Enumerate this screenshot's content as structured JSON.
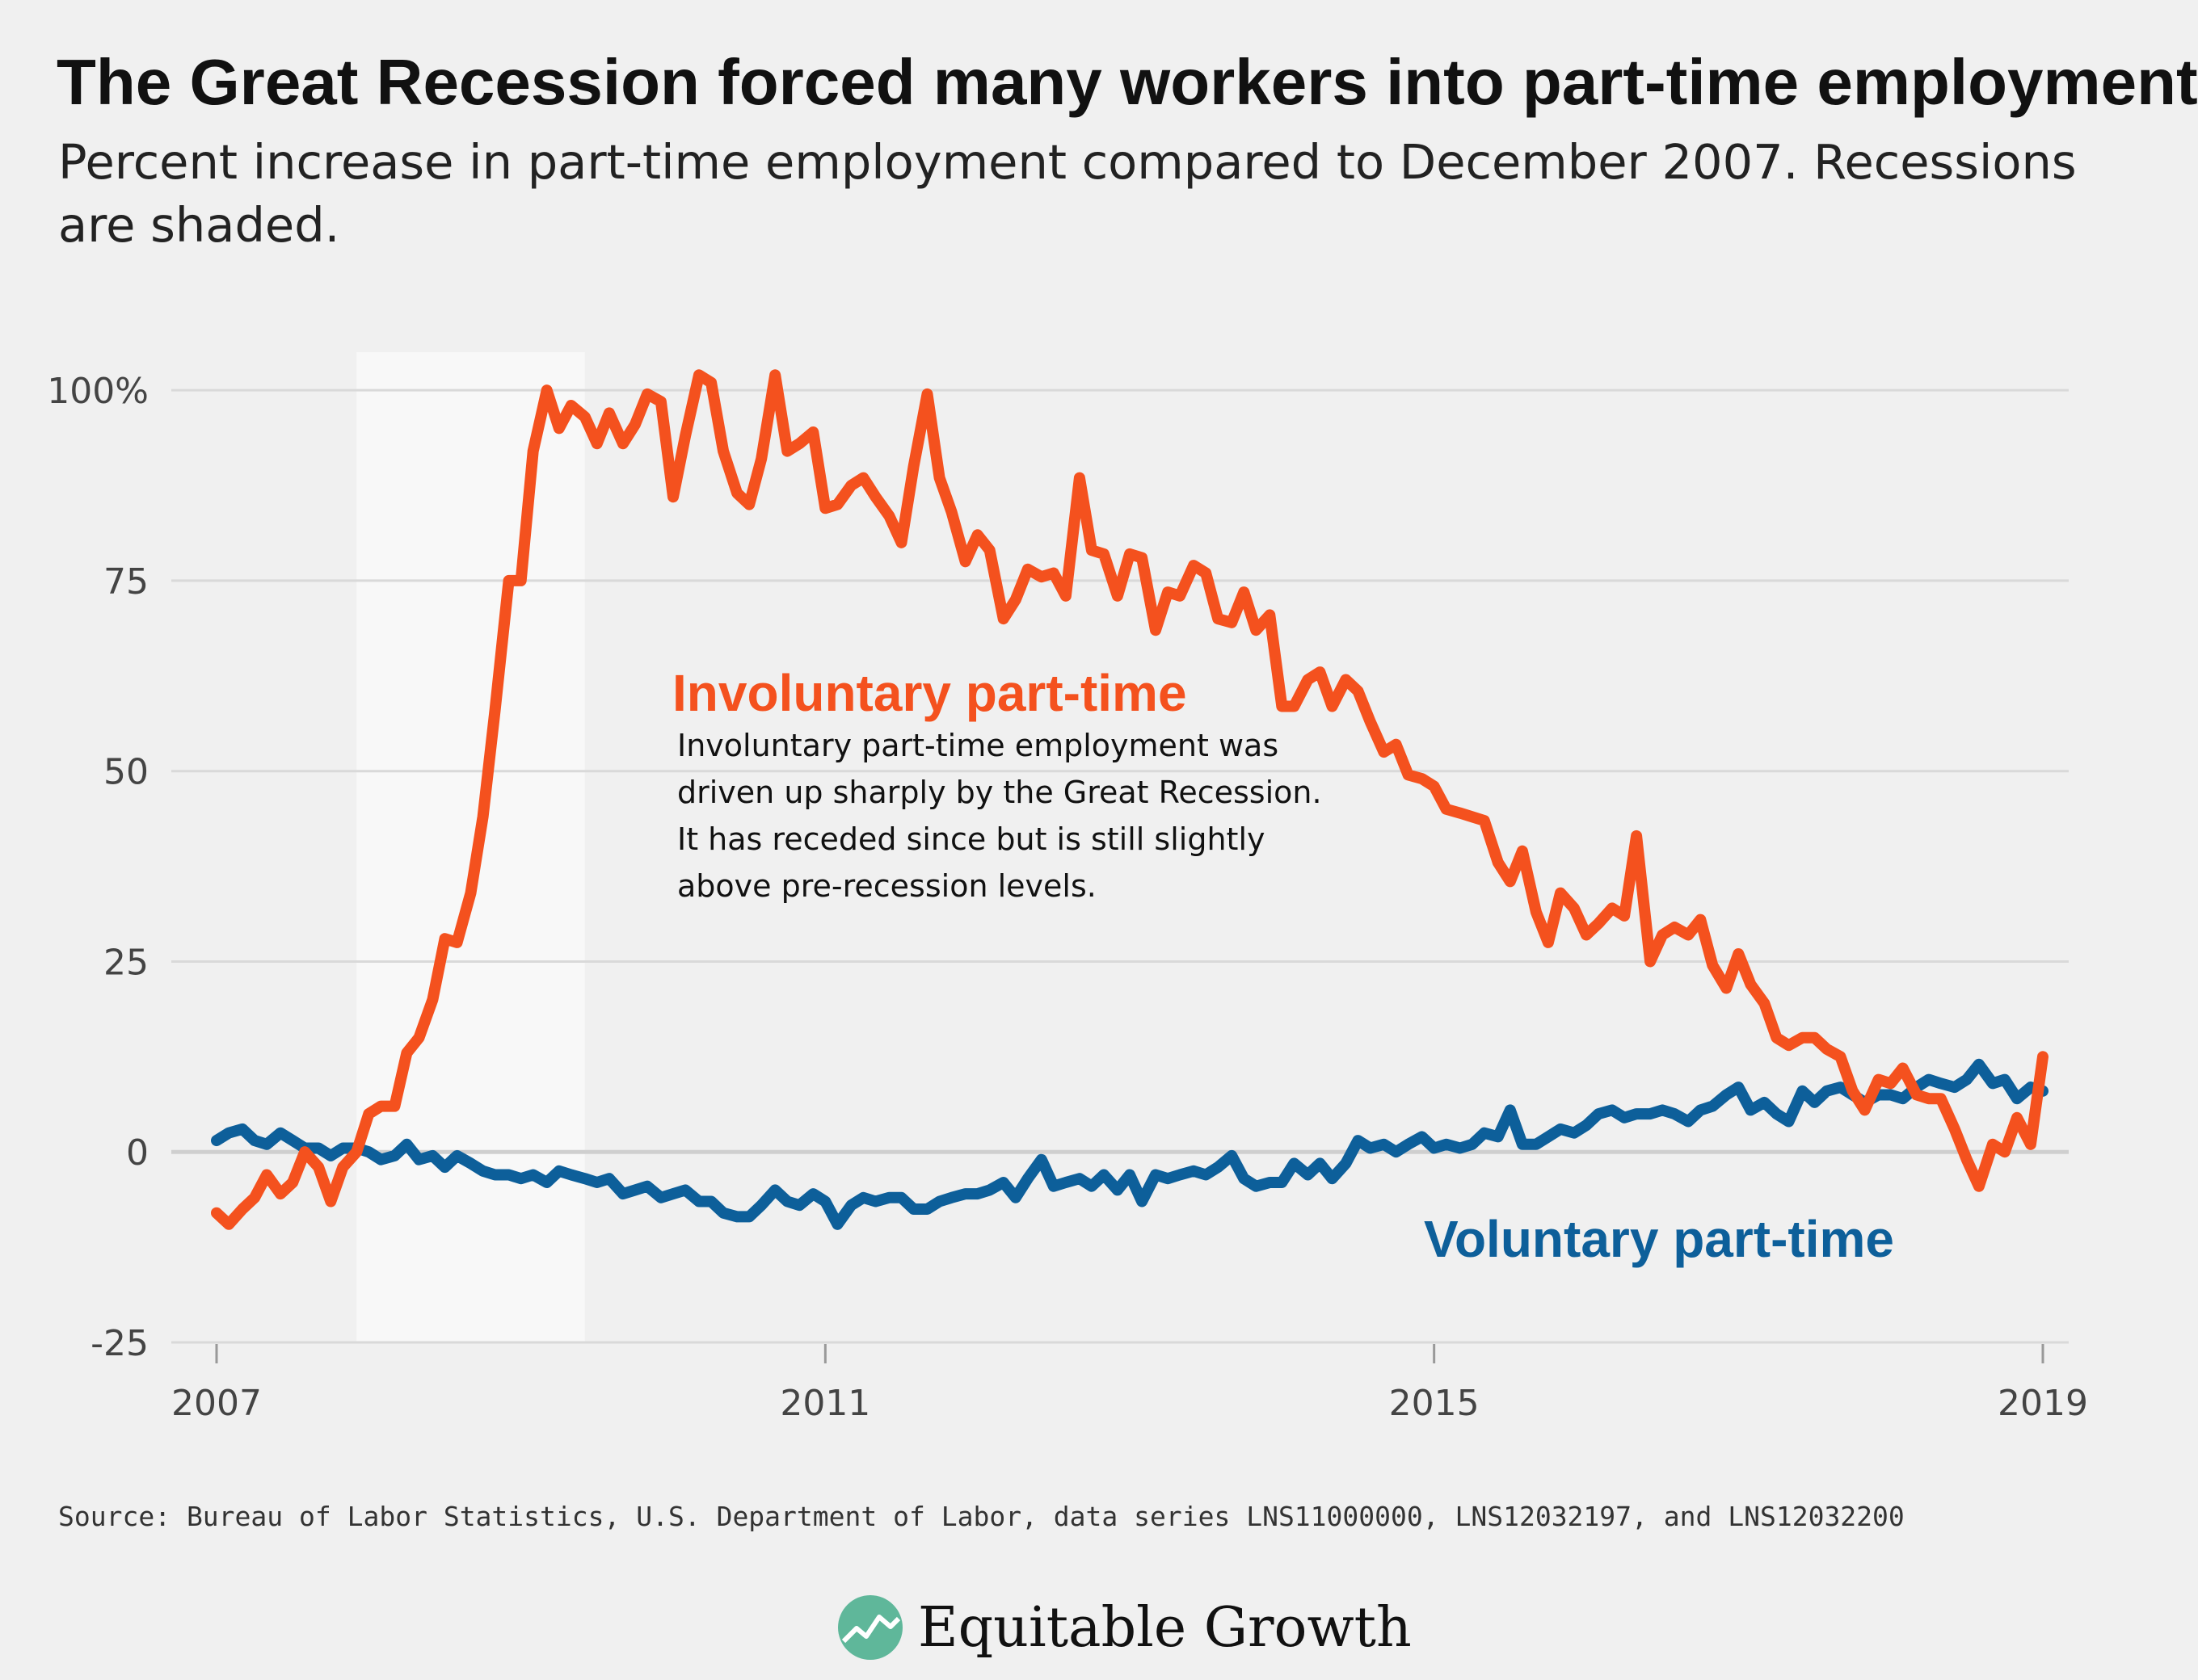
{
  "title": "The Great Recession forced many workers into part-time employment",
  "subtitle": "Percent increase in part-time employment compared to December 2007. Recessions are shaded.",
  "source": "Source: Bureau of Labor Statistics, U.S. Department of Labor, data series LNS11000000, LNS12032197, and LNS12032200",
  "logo_text": "Equitable Growth",
  "colors": {
    "involuntary": "#f4511e",
    "voluntary": "#0d5f9a",
    "recession": "#f8f8f8",
    "grid": "#d9d9d9",
    "logo_green": "#5fb79a"
  },
  "annotation": {
    "title": "Involuntary part-time",
    "lines": [
      "Involuntary part-time employment was",
      "driven up sharply by the Great Recession.",
      "It has receded since but is still slightly",
      "above pre-recession levels."
    ]
  },
  "voluntary_label": "Voluntary part-time",
  "chart_data": {
    "type": "line",
    "title": "The Great Recession forced many workers into part-time employment",
    "subtitle": "Percent increase in part-time employment compared to December 2007. Recessions are shaded.",
    "xlabel": "",
    "ylabel": "",
    "xlim": [
      2007,
      2019
    ],
    "ylim": [
      -25,
      105
    ],
    "x_ticks": [
      2007,
      2011,
      2015,
      2019
    ],
    "x_tick_labels": [
      "2007",
      "2011",
      "2015",
      "2019"
    ],
    "y_ticks": [
      -25,
      0,
      25,
      50,
      75,
      100
    ],
    "y_tick_labels": [
      "-25",
      "0",
      "25",
      "50",
      "75",
      "100%"
    ],
    "recession_shading": [
      [
        2007.92,
        2009.42
      ]
    ],
    "grid": true,
    "series": [
      {
        "name": "Involuntary part-time",
        "x": [
          2007.0,
          2007.08,
          2007.17,
          2007.25,
          2007.33,
          2007.42,
          2007.5,
          2007.58,
          2007.67,
          2007.75,
          2007.83,
          2007.92,
          2008.0,
          2008.08,
          2008.17,
          2008.25,
          2008.33,
          2008.42,
          2008.5,
          2008.58,
          2008.67,
          2008.75,
          2008.83,
          2008.92,
          2009.0,
          2009.08,
          2009.17,
          2009.25,
          2009.33,
          2009.42,
          2009.5,
          2009.58,
          2009.67,
          2009.75,
          2009.83,
          2009.92,
          2010.0,
          2010.08,
          2010.17,
          2010.25,
          2010.33,
          2010.42,
          2010.5,
          2010.58,
          2010.67,
          2010.75,
          2010.83,
          2010.92,
          2011.0,
          2011.08,
          2011.17,
          2011.25,
          2011.33,
          2011.42,
          2011.5,
          2011.58,
          2011.67,
          2011.75,
          2011.83,
          2011.92,
          2012.0,
          2012.08,
          2012.17,
          2012.25,
          2012.33,
          2012.42,
          2012.5,
          2012.58,
          2012.67,
          2012.75,
          2012.83,
          2012.92,
          2013.0,
          2013.08,
          2013.17,
          2013.25,
          2013.33,
          2013.42,
          2013.5,
          2013.58,
          2013.67,
          2013.75,
          2013.83,
          2013.92,
          2014.0,
          2014.08,
          2014.17,
          2014.25,
          2014.33,
          2014.42,
          2014.5,
          2014.58,
          2014.67,
          2014.75,
          2014.83,
          2014.92,
          2015.0,
          2015.08,
          2015.17,
          2015.25,
          2015.33,
          2015.42,
          2015.5,
          2015.58,
          2015.67,
          2015.75,
          2015.83,
          2015.92,
          2016.0,
          2016.08,
          2016.17,
          2016.25,
          2016.33,
          2016.42,
          2016.5,
          2016.58,
          2016.67,
          2016.75,
          2016.83,
          2016.92,
          2017.0,
          2017.08,
          2017.17,
          2017.25,
          2017.33,
          2017.42,
          2017.5,
          2017.58,
          2017.67,
          2017.75,
          2017.83,
          2017.92,
          2018.0,
          2018.08,
          2018.17,
          2018.25,
          2018.33,
          2018.42,
          2018.5,
          2018.58,
          2018.67,
          2018.75,
          2018.83,
          2018.92,
          2019.0
        ],
        "values": [
          -8,
          -9.5,
          -7.5,
          -6,
          -3,
          -5.5,
          -4,
          0,
          -2,
          -6.5,
          -2,
          0,
          5,
          6,
          6,
          13,
          15,
          20,
          28,
          27.5,
          34,
          44,
          58,
          75,
          75,
          92,
          100,
          95,
          98,
          96.5,
          93,
          97,
          93,
          95.5,
          99.5,
          98.5,
          86,
          94,
          102,
          101,
          92,
          86.5,
          85,
          91,
          102,
          92,
          93,
          94.5,
          84.5,
          85,
          87.5,
          88.5,
          86,
          83.5,
          80,
          90,
          99.5,
          88.5,
          84,
          77.5,
          81,
          79,
          70,
          72.5,
          76.5,
          75.5,
          76,
          73,
          88.5,
          79,
          78.5,
          73,
          78.5,
          78,
          68.5,
          73.5,
          73,
          77,
          76,
          70,
          69.5,
          73.5,
          68.5,
          70.5,
          58.5,
          58.5,
          62,
          63,
          58.5,
          62,
          60.5,
          56.5,
          52.5,
          53.5,
          49.5,
          49,
          48,
          45,
          44.5,
          44,
          43.5,
          38,
          35.5,
          39.5,
          31.5,
          27.5,
          34,
          32,
          28.5,
          30,
          32,
          31,
          41.5,
          25,
          28.5,
          29.5,
          28.5,
          30.5,
          24.5,
          21.5,
          26,
          22,
          19.5,
          15,
          14,
          15,
          15,
          13.5,
          12.5,
          8,
          5.5,
          9.5,
          9,
          11,
          7.5,
          7,
          7,
          3,
          -1,
          -4.5,
          1,
          0,
          4.5,
          1,
          12.5
        ]
      },
      {
        "name": "Voluntary part-time",
        "x": [
          2007.0,
          2007.08,
          2007.17,
          2007.25,
          2007.33,
          2007.42,
          2007.5,
          2007.58,
          2007.67,
          2007.75,
          2007.83,
          2007.92,
          2008.0,
          2008.08,
          2008.17,
          2008.25,
          2008.33,
          2008.42,
          2008.5,
          2008.58,
          2008.67,
          2008.75,
          2008.83,
          2008.92,
          2009.0,
          2009.08,
          2009.17,
          2009.25,
          2009.33,
          2009.42,
          2009.5,
          2009.58,
          2009.67,
          2009.75,
          2009.83,
          2009.92,
          2010.0,
          2010.08,
          2010.17,
          2010.25,
          2010.33,
          2010.42,
          2010.5,
          2010.58,
          2010.67,
          2010.75,
          2010.83,
          2010.92,
          2011.0,
          2011.08,
          2011.17,
          2011.25,
          2011.33,
          2011.42,
          2011.5,
          2011.58,
          2011.67,
          2011.75,
          2011.83,
          2011.92,
          2012.0,
          2012.08,
          2012.17,
          2012.25,
          2012.33,
          2012.42,
          2012.5,
          2012.58,
          2012.67,
          2012.75,
          2012.83,
          2012.92,
          2013.0,
          2013.08,
          2013.17,
          2013.25,
          2013.33,
          2013.42,
          2013.5,
          2013.58,
          2013.67,
          2013.75,
          2013.83,
          2013.92,
          2014.0,
          2014.08,
          2014.17,
          2014.25,
          2014.33,
          2014.42,
          2014.5,
          2014.58,
          2014.67,
          2014.75,
          2014.83,
          2014.92,
          2015.0,
          2015.08,
          2015.17,
          2015.25,
          2015.33,
          2015.42,
          2015.5,
          2015.58,
          2015.67,
          2015.75,
          2015.83,
          2015.92,
          2016.0,
          2016.08,
          2016.17,
          2016.25,
          2016.33,
          2016.42,
          2016.5,
          2016.58,
          2016.67,
          2016.75,
          2016.83,
          2016.92,
          2017.0,
          2017.08,
          2017.17,
          2017.25,
          2017.33,
          2017.42,
          2017.5,
          2017.58,
          2017.67,
          2017.75,
          2017.83,
          2017.92,
          2018.0,
          2018.08,
          2018.17,
          2018.25,
          2018.33,
          2018.42,
          2018.5,
          2018.58,
          2018.67,
          2018.75,
          2018.83,
          2018.92,
          2019.0
        ],
        "values": [
          1.5,
          2.5,
          3,
          1.5,
          1,
          2.5,
          1.5,
          0.5,
          0.5,
          -0.5,
          0.5,
          0.5,
          0,
          -1,
          -0.5,
          1,
          -1,
          -0.5,
          -2,
          -0.5,
          -1.5,
          -2.5,
          -3,
          -3,
          -3.5,
          -3,
          -4,
          -2.5,
          -3,
          -3.5,
          -4,
          -3.5,
          -5.5,
          -5,
          -4.5,
          -6,
          -5.5,
          -5,
          -6.5,
          -6.5,
          -8,
          -8.5,
          -8.5,
          -7,
          -5,
          -6.5,
          -7,
          -5.5,
          -6.5,
          -9.5,
          -7,
          -6,
          -6.5,
          -6,
          -6,
          -7.5,
          -7.5,
          -6.5,
          -6,
          -5.5,
          -5.5,
          -5,
          -4,
          -6,
          -3.5,
          -1,
          -4.5,
          -4,
          -3.5,
          -4.5,
          -3,
          -5,
          -3,
          -6.5,
          -3,
          -3.5,
          -3,
          -2.5,
          -3,
          -2,
          -0.5,
          -3.5,
          -4.5,
          -4,
          -4,
          -1.5,
          -3,
          -1.5,
          -3.5,
          -1.5,
          1.5,
          0.5,
          1,
          0,
          1,
          2,
          0.5,
          1,
          0.5,
          1,
          2.5,
          2,
          5.5,
          1,
          1,
          2,
          3,
          2.5,
          3.5,
          5,
          5.5,
          4.5,
          5,
          5,
          5.5,
          5,
          4,
          5.5,
          6,
          7.5,
          8.5,
          5.5,
          6.5,
          5,
          4,
          8,
          6.5,
          8,
          8.5,
          7.5,
          6.5,
          7.5,
          7.5,
          7,
          8.5,
          9.5,
          9,
          8.5,
          9.5,
          11.5,
          9,
          9.5,
          7,
          8.5,
          8
        ]
      }
    ]
  }
}
